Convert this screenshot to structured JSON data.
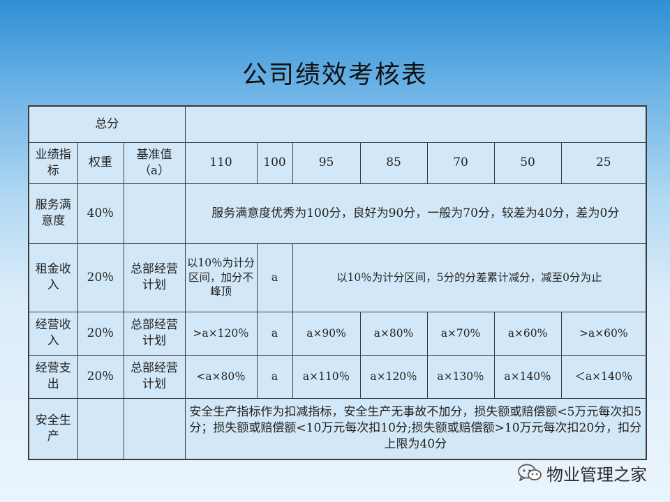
{
  "title": "公司绩效考核表",
  "table": {
    "total_label": "总分",
    "total_value": "",
    "header": {
      "item": "业绩指标",
      "weight": "权重",
      "baseline": "基准值（a）",
      "scores": [
        "110",
        "100",
        "95",
        "85",
        "70",
        "50",
        "25"
      ]
    },
    "rows": {
      "service": {
        "name": "服务满意度",
        "weight": "40％",
        "baseline": "",
        "rule": "服务满意度优秀为100分，良好为90分，一般为70分，较差为40分，差为0分"
      },
      "rent": {
        "name": "租金收入",
        "weight": "20％",
        "baseline": "总部经营计划",
        "s110": "以10％为计分区间，加分不峰顶",
        "s100": "a",
        "rule": "以10％为计分区间，5分的分差累计减分，减至0分为止"
      },
      "revenue": {
        "name": "经营收入",
        "weight": "20％",
        "baseline": "总部经营计划",
        "values": [
          ">a×120％",
          "a",
          "a×90%",
          "a×80%",
          "a×70%",
          "a×60%",
          ">a×60%"
        ]
      },
      "expense": {
        "name": "经营支出",
        "weight": "20％",
        "baseline": "总部经营计划",
        "values": [
          "<a×80％",
          "a",
          "a×110％",
          "a×120％",
          "a×130％",
          "a×140％",
          "＜a×140％"
        ]
      },
      "safety": {
        "name": "安全生产",
        "weight": "",
        "baseline": "",
        "rule": "安全生产指标作为扣减指标，安全生产无事故不加分，损失额或赔偿额<5万元每次扣5分；损失额或赔偿额<10万元每次扣10分;损失额或赔偿额>10万元每次扣20分，扣分上限为40分"
      }
    }
  },
  "watermark": {
    "text": "物业管理之家",
    "icon": "wechat-icon"
  }
}
